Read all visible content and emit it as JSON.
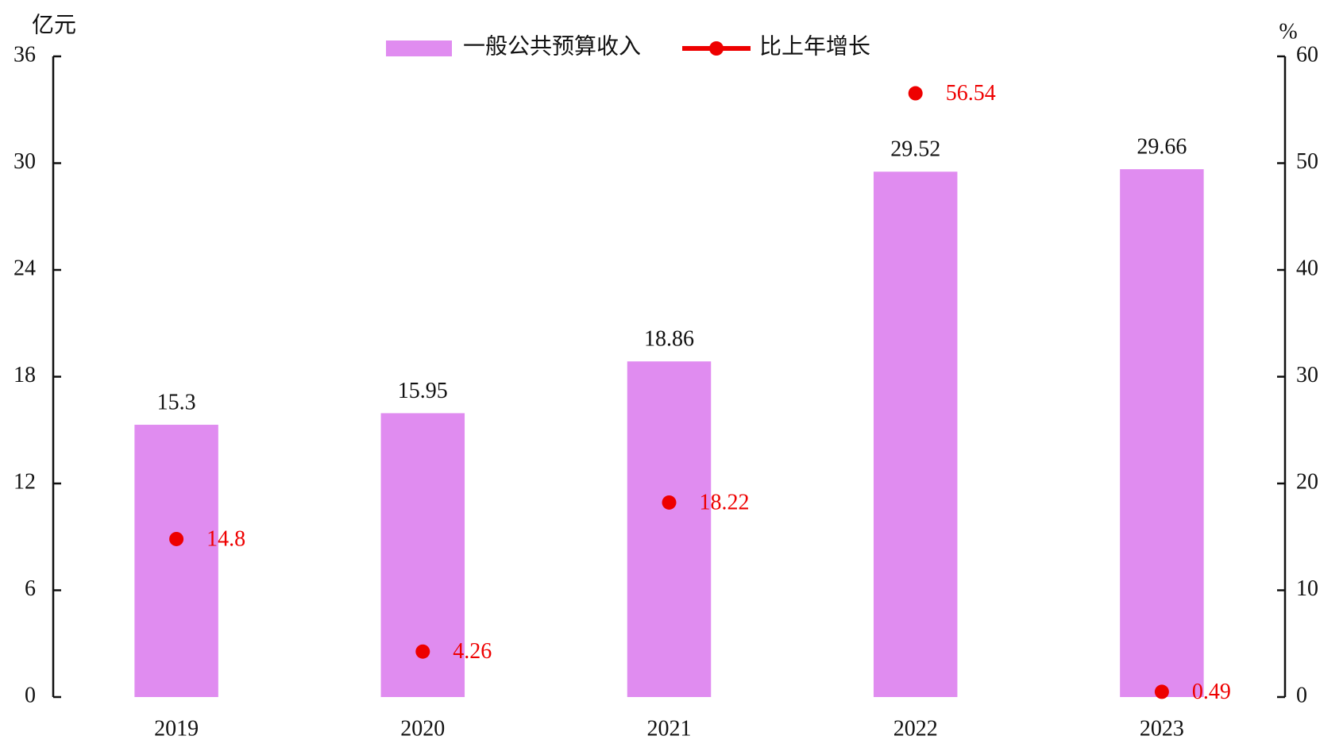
{
  "chart_data": {
    "type": "bar",
    "y_label": "亿元",
    "y2_label": "%",
    "categories": [
      "2019",
      "2020",
      "2021",
      "2022",
      "2023"
    ],
    "series": [
      {
        "name": "一般公共预算收入",
        "color": "#e08cf0",
        "type": "bar",
        "values": [
          15.3,
          15.95,
          18.86,
          29.52,
          29.66
        ]
      },
      {
        "name": "比上年增长",
        "color": "#ee0000",
        "type": "line",
        "axis": "y2",
        "values": [
          14.8,
          4.26,
          18.22,
          56.54,
          0.49
        ]
      }
    ],
    "ylim": [
      0,
      36
    ],
    "yticks": [
      0,
      6,
      12,
      18,
      24,
      30,
      36
    ],
    "y2lim": [
      0,
      60
    ],
    "y2ticks": [
      0,
      10,
      20,
      30,
      40,
      50,
      60
    ],
    "legend": "top",
    "grid": false
  }
}
